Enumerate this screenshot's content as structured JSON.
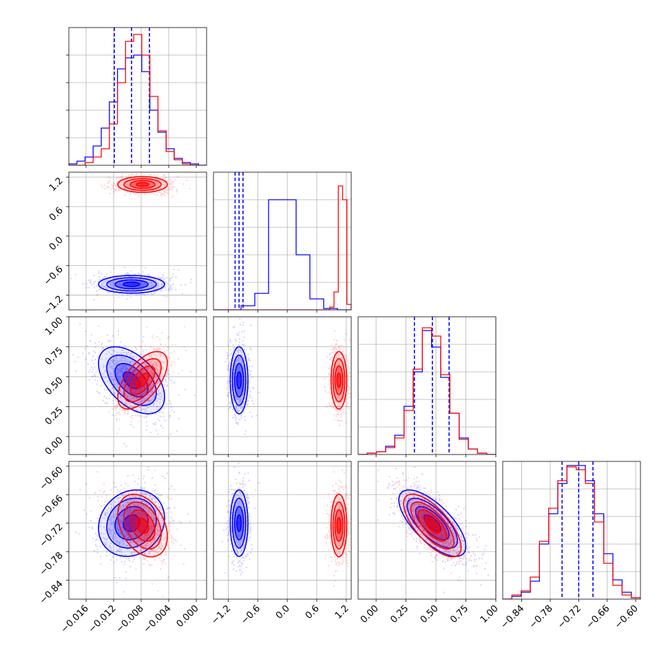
{
  "chart_data": {
    "type": "corner",
    "grid": true,
    "params": [
      {
        "range": [
          -0.0185,
          0.0015
        ],
        "ticks": [
          -0.016,
          -0.012,
          -0.008,
          -0.004,
          0.0
        ],
        "tick_labels": [
          "−0.016",
          "−0.012",
          "−0.008",
          "−0.004",
          "0.000"
        ]
      },
      {
        "range": [
          -1.5,
          1.3
        ],
        "ticks": [
          -1.2,
          -0.6,
          0.0,
          0.6,
          1.2
        ],
        "tick_labels": [
          "−1.2",
          "−0.6",
          "0.0",
          "0.6",
          "1.2"
        ]
      },
      {
        "range": [
          -0.15,
          1.0
        ],
        "ticks": [
          0.0,
          0.25,
          0.5,
          0.75,
          1.0
        ],
        "tick_labels": [
          "0.00",
          "0.25",
          "0.50",
          "0.75",
          "1.00"
        ]
      },
      {
        "range": [
          -0.88,
          -0.59
        ],
        "ticks": [
          -0.84,
          -0.78,
          -0.72,
          -0.66,
          -0.6
        ],
        "tick_labels": [
          "−0.84",
          "−0.78",
          "−0.72",
          "−0.66",
          "−0.60"
        ]
      }
    ],
    "series": [
      {
        "name_color": "blue",
        "color": "#0000ff",
        "mean": [
          -0.0094,
          -0.98,
          0.47,
          -0.72
        ],
        "std": [
          0.0024,
          0.09,
          0.14,
          0.035
        ],
        "hist": [
          [
            0.01,
            0.03,
            0.06,
            0.14,
            0.27,
            0.46,
            0.7,
            0.78,
            0.8,
            0.68,
            0.4,
            0.24,
            0.12,
            0.05,
            0.02,
            0.01,
            0.0
          ],
          [
            0.0,
            0.0,
            0.03,
            0.12,
            0.8,
            0.8,
            0.4,
            0.08,
            0.01,
            0.0
          ],
          [
            0.0,
            0.01,
            0.02,
            0.06,
            0.14,
            0.35,
            0.6,
            0.9,
            0.78,
            0.56,
            0.3,
            0.12,
            0.04,
            0.01,
            0.0
          ],
          [
            0.0,
            0.02,
            0.05,
            0.13,
            0.4,
            0.62,
            0.84,
            0.97,
            0.97,
            0.86,
            0.62,
            0.33,
            0.14,
            0.05,
            0.01
          ]
        ],
        "quantiles": [
          [
            -0.0119,
            -0.0094,
            -0.0068
          ],
          [
            -1.06,
            -0.98,
            -0.9
          ],
          [
            0.32,
            0.47,
            0.61
          ],
          [
            -0.755,
            -0.72,
            -0.69
          ]
        ],
        "corr": [
          [
            1,
            0,
            0,
            0
          ],
          [
            0,
            1,
            0,
            0
          ],
          [
            -0.5,
            0,
            1,
            0
          ],
          [
            0.15,
            0,
            -0.7,
            1
          ]
        ]
      },
      {
        "name_color": "red",
        "color": "#ff0000",
        "mean": [
          -0.0078,
          1.05,
          0.47,
          -0.725
        ],
        "std": [
          0.0018,
          0.08,
          0.12,
          0.033
        ],
        "hist": [
          [
            0.0,
            0.0,
            0.02,
            0.06,
            0.12,
            0.3,
            0.6,
            0.9,
            0.95,
            0.8,
            0.5,
            0.25,
            0.1,
            0.04,
            0.01,
            0.0,
            0.0
          ],
          [
            0.0,
            0.0,
            0.0,
            0.0,
            0.0,
            0.0,
            0.0,
            0.0,
            0.0,
            0.0,
            0.0,
            0.0,
            0.0,
            0.0,
            0.0,
            0.0,
            0.0,
            0.0,
            0.0,
            0.0,
            0.0,
            0.0,
            0.0,
            0.0,
            0.0,
            0.0,
            0.0,
            0.02,
            0.13,
            0.9,
            0.8,
            0.04
          ],
          [
            0.0,
            0.01,
            0.02,
            0.05,
            0.12,
            0.32,
            0.62,
            0.92,
            0.86,
            0.58,
            0.3,
            0.11,
            0.04,
            0.01,
            0.0
          ],
          [
            0.0,
            0.03,
            0.06,
            0.16,
            0.42,
            0.66,
            0.86,
            0.96,
            0.94,
            0.84,
            0.56,
            0.26,
            0.1,
            0.03,
            0.01
          ]
        ],
        "corr": [
          [
            1,
            0,
            0,
            0
          ],
          [
            0,
            1,
            0,
            0
          ],
          [
            0.6,
            0,
            1,
            0
          ],
          [
            -0.35,
            0,
            -0.7,
            1
          ]
        ]
      }
    ]
  }
}
